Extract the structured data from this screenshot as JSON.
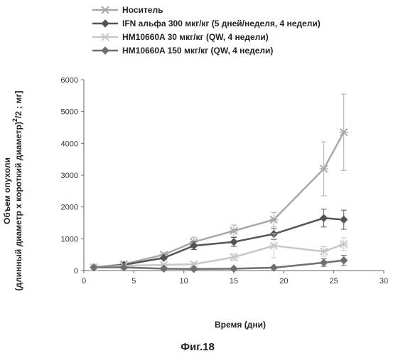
{
  "figure_label": "Фиг.18",
  "chart_data": {
    "type": "line",
    "xlabel": "Время (дни)",
    "ylabel_line1": "Объем опухоли",
    "ylabel_line2": "(длинный диаметр x короткий диаметр)",
    "ylabel_sup": "2",
    "ylabel_tail": "/2 ; мг]",
    "xlim": [
      0,
      30
    ],
    "ylim": [
      0,
      6000
    ],
    "xticks": [
      0,
      5,
      10,
      15,
      20,
      25,
      30
    ],
    "yticks": [
      0,
      1000,
      2000,
      3000,
      4000,
      5000,
      6000
    ],
    "grid": false,
    "legend_position": "top",
    "series": [
      {
        "name": "Носитель",
        "color": "#a8a8a8",
        "marker": "cross",
        "x": [
          1,
          4,
          8,
          11,
          15,
          19,
          24,
          26
        ],
        "y": [
          100,
          200,
          500,
          900,
          1250,
          1600,
          3200,
          4350
        ],
        "err": [
          0,
          0,
          60,
          150,
          180,
          230,
          850,
          1200
        ]
      },
      {
        "name": "IFN альфа 300 мкг/кг (5 дней/неделя, 4 недели)",
        "color": "#555555",
        "marker": "diamond",
        "x": [
          1,
          4,
          8,
          11,
          15,
          19,
          24,
          26
        ],
        "y": [
          100,
          180,
          400,
          780,
          900,
          1150,
          1650,
          1600
        ],
        "err": [
          0,
          0,
          50,
          120,
          140,
          170,
          280,
          300
        ]
      },
      {
        "name": "HM10660A 30 мкг/кг (QW, 4 недели)",
        "color": "#c8c8c8",
        "marker": "cross",
        "x": [
          1,
          4,
          8,
          11,
          15,
          19,
          24,
          26
        ],
        "y": [
          100,
          150,
          180,
          200,
          420,
          780,
          600,
          830
        ],
        "err": [
          0,
          0,
          40,
          60,
          100,
          380,
          150,
          200
        ]
      },
      {
        "name": "HM10660A 150 мкг/кг (QW, 4 недели)",
        "color": "#6e6e6e",
        "marker": "diamond",
        "x": [
          1,
          4,
          8,
          11,
          15,
          19,
          24,
          26
        ],
        "y": [
          100,
          100,
          60,
          50,
          60,
          90,
          250,
          320
        ],
        "err": [
          0,
          0,
          10,
          10,
          15,
          20,
          120,
          160
        ]
      }
    ]
  }
}
